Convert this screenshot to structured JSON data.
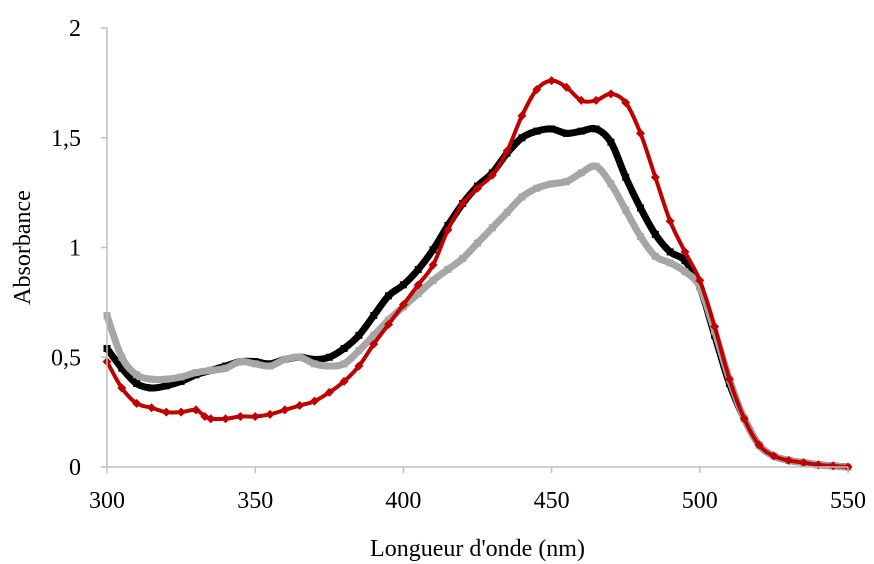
{
  "chart_data": {
    "type": "line",
    "title": "",
    "xlabel": "Longueur d'onde (nm)",
    "ylabel": "Absorbance",
    "xlim": [
      300,
      550
    ],
    "ylim": [
      0,
      2
    ],
    "x_ticks": [
      300,
      350,
      400,
      450,
      500,
      550
    ],
    "x_tick_labels": [
      "300",
      "350",
      "400",
      "450",
      "500",
      "550"
    ],
    "y_ticks": [
      0,
      0.5,
      1,
      1.5,
      2
    ],
    "y_tick_labels": [
      "0",
      "0,5",
      "1",
      "1,5",
      "2"
    ],
    "grid": false,
    "legend": "none",
    "series": [
      {
        "color": "#000000",
        "marker": "square",
        "points": [
          [
            300,
            0.54
          ],
          [
            305,
            0.45
          ],
          [
            310,
            0.38
          ],
          [
            315,
            0.36
          ],
          [
            320,
            0.37
          ],
          [
            325,
            0.39
          ],
          [
            330,
            0.42
          ],
          [
            335,
            0.44
          ],
          [
            340,
            0.46
          ],
          [
            345,
            0.48
          ],
          [
            350,
            0.48
          ],
          [
            355,
            0.47
          ],
          [
            360,
            0.49
          ],
          [
            365,
            0.5
          ],
          [
            370,
            0.49
          ],
          [
            375,
            0.5
          ],
          [
            380,
            0.54
          ],
          [
            385,
            0.6
          ],
          [
            390,
            0.69
          ],
          [
            395,
            0.78
          ],
          [
            400,
            0.83
          ],
          [
            405,
            0.9
          ],
          [
            410,
            0.99
          ],
          [
            415,
            1.1
          ],
          [
            420,
            1.2
          ],
          [
            425,
            1.28
          ],
          [
            430,
            1.34
          ],
          [
            435,
            1.43
          ],
          [
            440,
            1.5
          ],
          [
            445,
            1.53
          ],
          [
            450,
            1.54
          ],
          [
            455,
            1.52
          ],
          [
            460,
            1.53
          ],
          [
            465,
            1.54
          ],
          [
            470,
            1.48
          ],
          [
            475,
            1.32
          ],
          [
            480,
            1.18
          ],
          [
            485,
            1.06
          ],
          [
            490,
            0.98
          ],
          [
            495,
            0.94
          ],
          [
            500,
            0.82
          ],
          [
            505,
            0.6
          ],
          [
            510,
            0.38
          ],
          [
            515,
            0.22
          ],
          [
            520,
            0.1
          ],
          [
            525,
            0.05
          ],
          [
            530,
            0.03
          ],
          [
            535,
            0.02
          ],
          [
            540,
            0.01
          ],
          [
            545,
            0.005
          ],
          [
            550,
            0.0
          ]
        ]
      },
      {
        "color": "#a6a6a6",
        "marker": "square",
        "points": [
          [
            300,
            0.69
          ],
          [
            305,
            0.5
          ],
          [
            310,
            0.42
          ],
          [
            315,
            0.4
          ],
          [
            320,
            0.4
          ],
          [
            325,
            0.41
          ],
          [
            330,
            0.43
          ],
          [
            335,
            0.44
          ],
          [
            340,
            0.45
          ],
          [
            345,
            0.48
          ],
          [
            350,
            0.47
          ],
          [
            355,
            0.46
          ],
          [
            360,
            0.49
          ],
          [
            365,
            0.5
          ],
          [
            370,
            0.47
          ],
          [
            375,
            0.46
          ],
          [
            380,
            0.47
          ],
          [
            385,
            0.53
          ],
          [
            390,
            0.6
          ],
          [
            395,
            0.67
          ],
          [
            400,
            0.73
          ],
          [
            405,
            0.79
          ],
          [
            410,
            0.85
          ],
          [
            415,
            0.9
          ],
          [
            420,
            0.95
          ],
          [
            425,
            1.02
          ],
          [
            430,
            1.09
          ],
          [
            435,
            1.16
          ],
          [
            440,
            1.23
          ],
          [
            445,
            1.27
          ],
          [
            450,
            1.29
          ],
          [
            455,
            1.3
          ],
          [
            460,
            1.34
          ],
          [
            465,
            1.37
          ],
          [
            470,
            1.29
          ],
          [
            475,
            1.17
          ],
          [
            480,
            1.05
          ],
          [
            485,
            0.96
          ],
          [
            490,
            0.93
          ],
          [
            495,
            0.89
          ],
          [
            500,
            0.82
          ],
          [
            505,
            0.62
          ],
          [
            510,
            0.4
          ],
          [
            515,
            0.22
          ],
          [
            520,
            0.1
          ],
          [
            525,
            0.05
          ],
          [
            530,
            0.03
          ],
          [
            535,
            0.02
          ],
          [
            540,
            0.01
          ],
          [
            545,
            0.005
          ],
          [
            550,
            0.0
          ]
        ]
      },
      {
        "color": "#c00000",
        "marker": "diamond",
        "points": [
          [
            300,
            0.48
          ],
          [
            305,
            0.36
          ],
          [
            310,
            0.29
          ],
          [
            315,
            0.27
          ],
          [
            320,
            0.25
          ],
          [
            325,
            0.25
          ],
          [
            330,
            0.26
          ],
          [
            333,
            0.23
          ],
          [
            335,
            0.22
          ],
          [
            340,
            0.22
          ],
          [
            345,
            0.23
          ],
          [
            350,
            0.23
          ],
          [
            355,
            0.24
          ],
          [
            360,
            0.26
          ],
          [
            365,
            0.28
          ],
          [
            370,
            0.3
          ],
          [
            375,
            0.34
          ],
          [
            380,
            0.39
          ],
          [
            385,
            0.46
          ],
          [
            390,
            0.56
          ],
          [
            395,
            0.65
          ],
          [
            400,
            0.74
          ],
          [
            405,
            0.83
          ],
          [
            410,
            0.92
          ],
          [
            415,
            1.08
          ],
          [
            420,
            1.2
          ],
          [
            425,
            1.27
          ],
          [
            430,
            1.33
          ],
          [
            435,
            1.44
          ],
          [
            440,
            1.6
          ],
          [
            445,
            1.72
          ],
          [
            450,
            1.76
          ],
          [
            455,
            1.73
          ],
          [
            460,
            1.67
          ],
          [
            465,
            1.67
          ],
          [
            470,
            1.7
          ],
          [
            475,
            1.66
          ],
          [
            480,
            1.52
          ],
          [
            485,
            1.32
          ],
          [
            490,
            1.12
          ],
          [
            495,
            0.98
          ],
          [
            500,
            0.85
          ],
          [
            505,
            0.64
          ],
          [
            510,
            0.4
          ],
          [
            515,
            0.22
          ],
          [
            520,
            0.1
          ],
          [
            525,
            0.05
          ],
          [
            530,
            0.03
          ],
          [
            535,
            0.02
          ],
          [
            540,
            0.01
          ],
          [
            545,
            0.005
          ],
          [
            550,
            0.0
          ]
        ]
      }
    ]
  }
}
